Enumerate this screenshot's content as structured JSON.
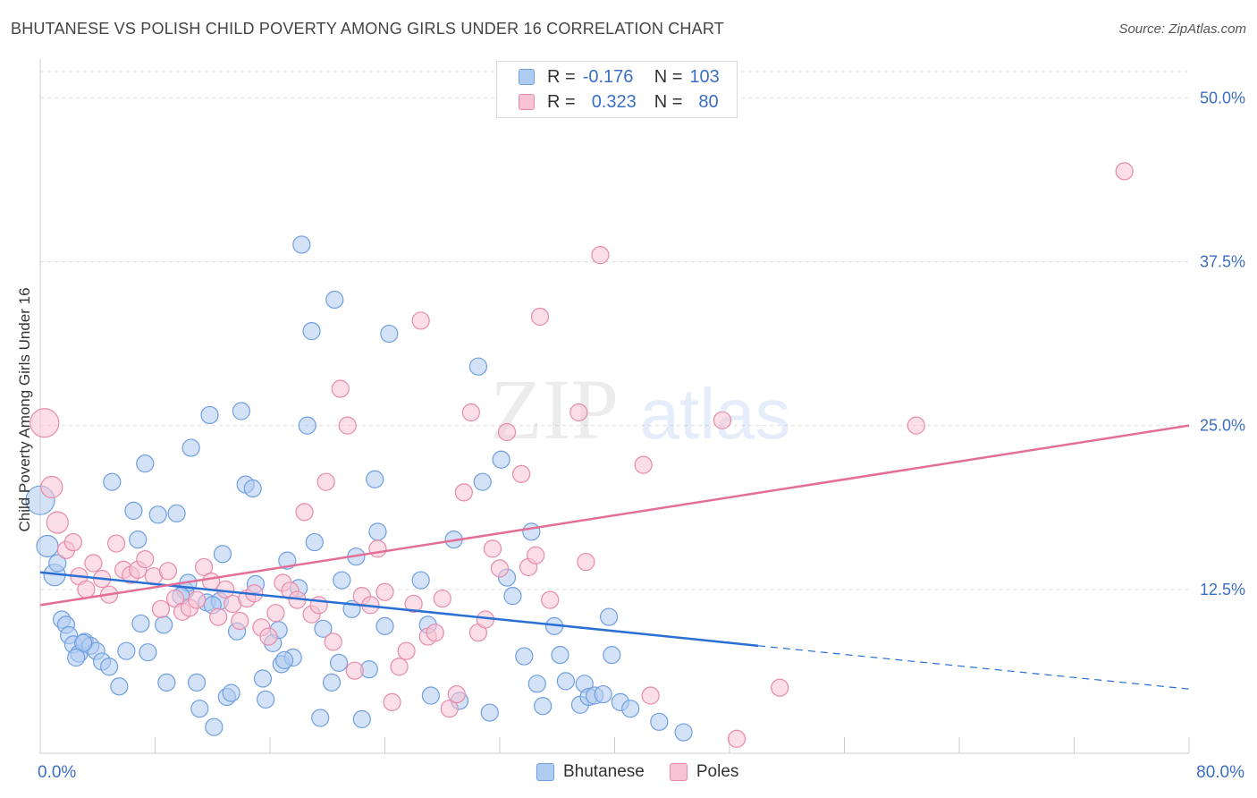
{
  "title": "BHUTANESE VS POLISH CHILD POVERTY AMONG GIRLS UNDER 16 CORRELATION CHART",
  "source": "Source: ZipAtlas.com",
  "watermark": {
    "zip": "ZIP",
    "atlas": "atlas"
  },
  "legend": {
    "rows": [
      {
        "r_label": "R =",
        "r_value": "-0.176",
        "n_label": "N =",
        "n_value": "103",
        "color": "#aecbf0",
        "border": "#6f9fe0"
      },
      {
        "r_label": "R =",
        "r_value": "0.323",
        "n_label": "N =",
        "n_value": "80",
        "color": "#f7c3d4",
        "border": "#e88aab"
      }
    ],
    "bottom": [
      {
        "name": "Bhutanese",
        "color": "#aecbf0",
        "border": "#6f9fe0"
      },
      {
        "name": "Poles",
        "color": "#f7c3d4",
        "border": "#e88aab"
      }
    ]
  },
  "chart_data": {
    "type": "scatter",
    "title": "BHUTANESE VS POLISH CHILD POVERTY AMONG GIRLS UNDER 16 CORRELATION CHART",
    "xlabel_left": "0.0%",
    "xlabel_right": "80.0%",
    "ylabel": "Child Poverty Among Girls Under 16",
    "xlim": [
      0,
      80
    ],
    "ylim": [
      0,
      52
    ],
    "y_ticks": [
      {
        "value": 12.5,
        "label": "12.5%"
      },
      {
        "value": 25.0,
        "label": "25.0%"
      },
      {
        "value": 37.5,
        "label": "37.5%"
      },
      {
        "value": 50.0,
        "label": "50.0%"
      }
    ],
    "grid": true,
    "colors": {
      "bhutanese_fill": "#aecbf0",
      "bhutanese_stroke": "#6f9fe0",
      "bhutanese_line": "#2a6fd4",
      "poles_fill": "#f7c3d4",
      "poles_stroke": "#e88aab",
      "poles_line": "#e36e97"
    },
    "series": [
      {
        "name": "Bhutanese",
        "trend": {
          "x0": 0,
          "y0": 13.8,
          "x1": 50,
          "y1": 8.2,
          "dash_to_x": 80,
          "dash_to_y": 4.9
        },
        "points": [
          [
            0.0,
            19.3
          ],
          [
            0.5,
            15.8
          ],
          [
            1.0,
            13.6
          ],
          [
            1.2,
            14.5
          ],
          [
            1.5,
            10.2
          ],
          [
            1.8,
            9.8
          ],
          [
            2.0,
            9.0
          ],
          [
            2.3,
            8.3
          ],
          [
            2.7,
            7.6
          ],
          [
            3.1,
            8.5
          ],
          [
            3.5,
            8.2
          ],
          [
            3.9,
            7.8
          ],
          [
            4.3,
            7.0
          ],
          [
            4.8,
            6.6
          ],
          [
            5.5,
            5.1
          ],
          [
            6.0,
            7.8
          ],
          [
            6.5,
            18.5
          ],
          [
            6.8,
            16.3
          ],
          [
            7.0,
            9.9
          ],
          [
            7.5,
            7.7
          ],
          [
            7.3,
            22.1
          ],
          [
            8.2,
            18.2
          ],
          [
            8.6,
            9.8
          ],
          [
            8.8,
            5.4
          ],
          [
            9.5,
            18.3
          ],
          [
            10.1,
            12.4
          ],
          [
            10.3,
            13.0
          ],
          [
            10.5,
            23.3
          ],
          [
            10.9,
            5.4
          ],
          [
            11.1,
            3.4
          ],
          [
            11.6,
            11.5
          ],
          [
            11.8,
            25.8
          ],
          [
            12.1,
            2.0
          ],
          [
            12.5,
            11.6
          ],
          [
            12.7,
            15.2
          ],
          [
            13.0,
            4.3
          ],
          [
            13.3,
            4.6
          ],
          [
            13.7,
            9.3
          ],
          [
            14.0,
            26.1
          ],
          [
            14.3,
            20.5
          ],
          [
            14.8,
            20.2
          ],
          [
            15.0,
            12.9
          ],
          [
            15.5,
            5.7
          ],
          [
            15.7,
            4.1
          ],
          [
            16.2,
            8.4
          ],
          [
            16.6,
            9.4
          ],
          [
            16.8,
            6.8
          ],
          [
            17.2,
            14.7
          ],
          [
            17.6,
            7.3
          ],
          [
            18.0,
            12.6
          ],
          [
            18.2,
            38.8
          ],
          [
            18.6,
            25.0
          ],
          [
            18.9,
            32.2
          ],
          [
            19.1,
            16.1
          ],
          [
            19.5,
            2.7
          ],
          [
            19.7,
            9.5
          ],
          [
            20.3,
            5.4
          ],
          [
            20.5,
            34.6
          ],
          [
            20.8,
            6.9
          ],
          [
            21.0,
            13.2
          ],
          [
            21.7,
            11.0
          ],
          [
            22.0,
            15.0
          ],
          [
            22.4,
            2.6
          ],
          [
            22.9,
            6.4
          ],
          [
            23.3,
            20.9
          ],
          [
            23.5,
            16.9
          ],
          [
            24.0,
            9.7
          ],
          [
            24.3,
            32.0
          ],
          [
            26.5,
            13.2
          ],
          [
            27.2,
            4.4
          ],
          [
            27.0,
            9.8
          ],
          [
            28.8,
            16.3
          ],
          [
            29.2,
            4.0
          ],
          [
            30.5,
            29.5
          ],
          [
            30.8,
            20.7
          ],
          [
            31.3,
            3.1
          ],
          [
            32.1,
            22.4
          ],
          [
            32.5,
            13.4
          ],
          [
            32.9,
            12.0
          ],
          [
            33.7,
            7.4
          ],
          [
            34.2,
            16.9
          ],
          [
            34.6,
            5.3
          ],
          [
            35.0,
            3.6
          ],
          [
            35.8,
            9.7
          ],
          [
            36.2,
            7.5
          ],
          [
            36.6,
            5.5
          ],
          [
            37.6,
            3.7
          ],
          [
            37.9,
            5.3
          ],
          [
            38.2,
            4.3
          ],
          [
            38.6,
            4.4
          ],
          [
            39.2,
            4.5
          ],
          [
            39.6,
            10.4
          ],
          [
            39.8,
            7.5
          ],
          [
            40.4,
            3.9
          ],
          [
            41.1,
            3.4
          ],
          [
            43.1,
            2.4
          ],
          [
            44.8,
            1.6
          ],
          [
            5.0,
            20.7
          ],
          [
            3.0,
            8.4
          ],
          [
            2.5,
            7.3
          ],
          [
            9.8,
            12.0
          ],
          [
            12.0,
            11.3
          ],
          [
            17.0,
            7.1
          ]
        ]
      },
      {
        "name": "Poles",
        "trend": {
          "x0": 0,
          "y0": 11.3,
          "x1": 80,
          "y1": 25.0
        },
        "points": [
          [
            0.3,
            25.2
          ],
          [
            0.8,
            20.3
          ],
          [
            1.2,
            17.6
          ],
          [
            1.8,
            15.5
          ],
          [
            2.3,
            16.1
          ],
          [
            2.7,
            13.5
          ],
          [
            3.2,
            12.5
          ],
          [
            3.7,
            14.5
          ],
          [
            4.3,
            13.3
          ],
          [
            4.8,
            12.1
          ],
          [
            5.3,
            16.0
          ],
          [
            5.8,
            14.0
          ],
          [
            6.3,
            13.6
          ],
          [
            6.8,
            14.0
          ],
          [
            7.3,
            14.8
          ],
          [
            7.9,
            13.5
          ],
          [
            8.4,
            11.0
          ],
          [
            8.9,
            13.9
          ],
          [
            9.4,
            11.8
          ],
          [
            9.9,
            10.8
          ],
          [
            10.4,
            11.1
          ],
          [
            10.9,
            11.7
          ],
          [
            11.4,
            14.2
          ],
          [
            11.9,
            13.1
          ],
          [
            12.4,
            10.4
          ],
          [
            12.9,
            12.5
          ],
          [
            13.4,
            11.4
          ],
          [
            13.9,
            10.1
          ],
          [
            14.4,
            11.8
          ],
          [
            14.9,
            12.2
          ],
          [
            15.4,
            9.6
          ],
          [
            15.9,
            8.9
          ],
          [
            16.4,
            10.7
          ],
          [
            16.9,
            13.0
          ],
          [
            17.4,
            12.4
          ],
          [
            17.9,
            11.7
          ],
          [
            18.4,
            18.4
          ],
          [
            18.9,
            10.6
          ],
          [
            19.4,
            11.3
          ],
          [
            19.9,
            20.7
          ],
          [
            20.4,
            8.5
          ],
          [
            20.9,
            27.8
          ],
          [
            21.4,
            25.0
          ],
          [
            21.9,
            6.3
          ],
          [
            22.4,
            12.0
          ],
          [
            23.0,
            11.3
          ],
          [
            23.5,
            15.6
          ],
          [
            24.0,
            12.3
          ],
          [
            24.5,
            3.9
          ],
          [
            25.0,
            6.6
          ],
          [
            25.5,
            7.8
          ],
          [
            26.0,
            11.4
          ],
          [
            26.5,
            33.0
          ],
          [
            27.0,
            8.9
          ],
          [
            27.5,
            9.2
          ],
          [
            28.0,
            11.8
          ],
          [
            28.5,
            3.4
          ],
          [
            29.0,
            4.5
          ],
          [
            29.5,
            19.9
          ],
          [
            30.0,
            26.0
          ],
          [
            30.5,
            9.2
          ],
          [
            31.0,
            10.2
          ],
          [
            31.5,
            15.6
          ],
          [
            32.0,
            14.1
          ],
          [
            32.5,
            24.5
          ],
          [
            33.5,
            21.3
          ],
          [
            34.0,
            14.2
          ],
          [
            34.5,
            15.1
          ],
          [
            34.8,
            33.3
          ],
          [
            35.5,
            11.7
          ],
          [
            37.5,
            26.0
          ],
          [
            38.0,
            14.6
          ],
          [
            39.0,
            38.0
          ],
          [
            42.0,
            22.0
          ],
          [
            42.5,
            4.4
          ],
          [
            47.5,
            25.4
          ],
          [
            48.5,
            1.1
          ],
          [
            51.5,
            5.0
          ],
          [
            61.0,
            25.0
          ],
          [
            75.5,
            44.4
          ]
        ]
      }
    ]
  }
}
